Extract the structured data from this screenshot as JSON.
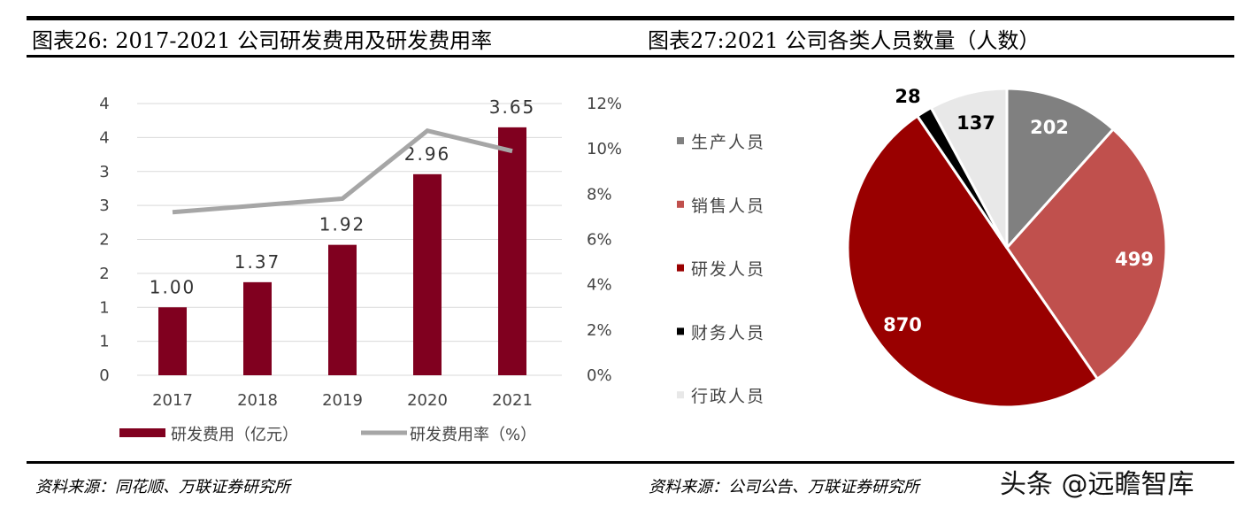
{
  "left": {
    "title": "图表26:  2017-2021 公司研发费用及研发费用率",
    "source": "资料来源：同花顺、万联证券研究所"
  },
  "right": {
    "title": "图表27:2021 公司各类人员数量（人数）",
    "source": "资料来源：公司公告、万联证券研究所"
  },
  "watermark": "头条 @远瞻智库",
  "chart_data": [
    {
      "type": "bar+line",
      "categories": [
        "2017",
        "2018",
        "2019",
        "2020",
        "2021"
      ],
      "series": [
        {
          "name": "研发费用（亿元）",
          "type": "bar",
          "axis": "left",
          "values": [
            1.0,
            1.37,
            1.92,
            2.96,
            3.65
          ],
          "labels": [
            "1.00",
            "1.37",
            "1.92",
            "2.96",
            "3.65"
          ],
          "color": "#80001f"
        },
        {
          "name": "研发费用率（%）",
          "type": "line",
          "axis": "right",
          "values": [
            7.2,
            7.5,
            7.8,
            10.8,
            9.9
          ],
          "color": "#a6a6a6"
        }
      ],
      "ylim_left": [
        0,
        4
      ],
      "yticks_left": [
        "0",
        "1",
        "1",
        "2",
        "2",
        "3",
        "3",
        "4",
        "4"
      ],
      "ylim_right": [
        0,
        12
      ],
      "yticks_right": [
        "0%",
        "2%",
        "4%",
        "6%",
        "8%",
        "10%",
        "12%"
      ],
      "grid": true,
      "legend": "bottom"
    },
    {
      "type": "pie",
      "categories": [
        "生产人员",
        "销售人员",
        "研发人员",
        "财务人员",
        "行政人员"
      ],
      "values": [
        202,
        499,
        870,
        28,
        137
      ],
      "colors": [
        "#808080",
        "#c0504d",
        "#990000",
        "#000000",
        "#e8e8e8"
      ],
      "label_colors": [
        "#ffffff",
        "#ffffff",
        "#ffffff",
        "#000000",
        "#000000"
      ],
      "legend": "left"
    }
  ]
}
